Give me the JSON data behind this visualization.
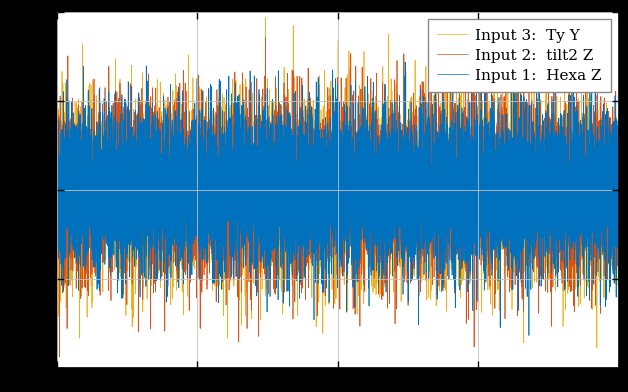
{
  "legend_labels": [
    "Input 1:  Hexa Z",
    "Input 2:  tilt2 Z",
    "Input 3:  Ty Y"
  ],
  "colors": [
    "#0072BD",
    "#D95319",
    "#EDB120"
  ],
  "n_points": 10000,
  "seed": 42,
  "background_color": "#ffffff",
  "fig_background_color": "#000000",
  "grid_color": "#c0c0c0",
  "ylim": [
    -1.5,
    1.5
  ],
  "figsize": [
    6.28,
    3.92
  ],
  "dpi": 100,
  "legend_fontsize": 11,
  "linewidth": 0.5
}
